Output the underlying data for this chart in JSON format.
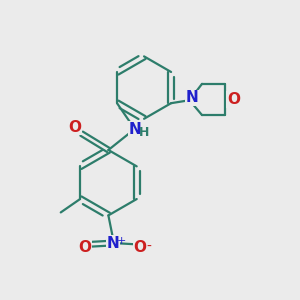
{
  "bg_color": "#ebebeb",
  "bond_color": "#2d7d6b",
  "N_color": "#2020cc",
  "O_color": "#cc2020",
  "lw": 1.6,
  "fs": 10,
  "fig_w": 3.0,
  "fig_h": 3.0,
  "dpi": 100,
  "xlim": [
    0,
    10
  ],
  "ylim": [
    0,
    10
  ]
}
